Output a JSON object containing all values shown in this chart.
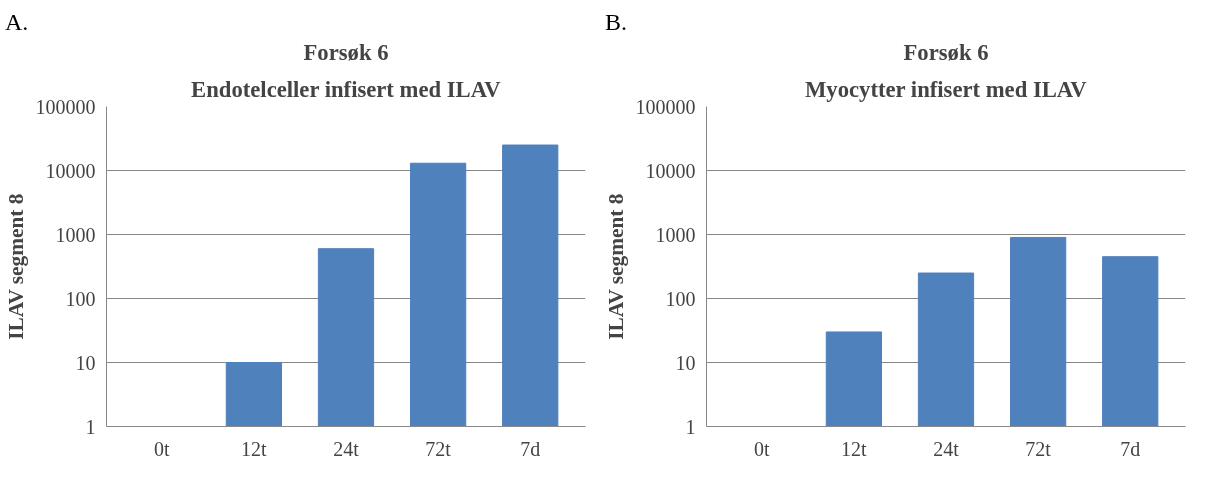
{
  "chart_data": [
    {
      "type": "bar",
      "title": "Forsøk 6",
      "subtitle": "Endotelceller infisert med ILAV",
      "ylabel": "ILAV segment 8",
      "annotations": [
        "A."
      ],
      "categories": [
        "0t",
        "12t",
        "24t",
        "72t",
        "7d"
      ],
      "values": [
        1,
        10,
        600,
        13000,
        25000
      ],
      "color": "#4f81bd",
      "log": true,
      "ylim": [
        1,
        100000
      ],
      "yticks": [
        1,
        10,
        100,
        1000,
        10000,
        100000
      ],
      "grid": "y"
    },
    {
      "type": "bar",
      "title": "Forsøk 6",
      "subtitle": "Myocytter infisert med ILAV",
      "ylabel": "ILAV segment 8",
      "annotations": [
        "B."
      ],
      "categories": [
        "0t",
        "12t",
        "24t",
        "72t",
        "7d"
      ],
      "values": [
        1,
        30,
        250,
        900,
        450
      ],
      "color": "#4f81bd",
      "log": true,
      "ylim": [
        1,
        100000
      ],
      "yticks": [
        1,
        10,
        100,
        1000,
        10000,
        100000
      ],
      "grid": "y"
    }
  ]
}
